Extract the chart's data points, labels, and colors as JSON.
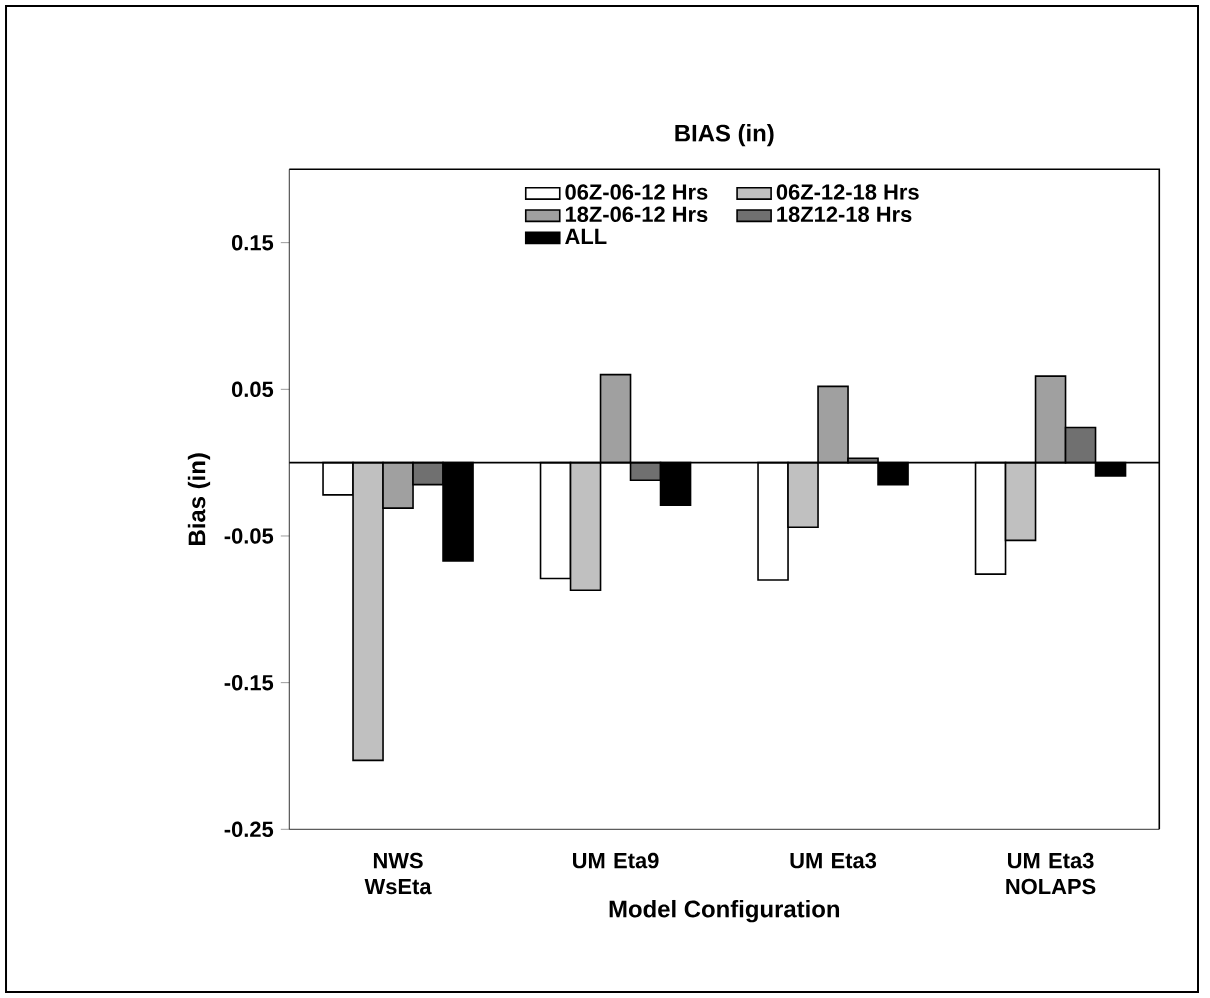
{
  "chart_data": {
    "type": "bar",
    "title": "BIAS (in)",
    "xlabel": "Model Configuration",
    "ylabel": "Bias (in)",
    "categories": [
      "NWS WsEta",
      "UM Eta9",
      "UM Eta3",
      "UM Eta3 NOLAPS"
    ],
    "series": [
      {
        "name": "06Z-06-12 Hrs",
        "color": "#ffffff",
        "values": [
          -0.022,
          -0.079,
          -0.08,
          -0.076
        ]
      },
      {
        "name": "06Z-12-18 Hrs",
        "color": "#c0c0c0",
        "values": [
          -0.203,
          -0.087,
          -0.044,
          -0.053
        ]
      },
      {
        "name": "18Z-06-12 Hrs",
        "color": "#a0a0a0",
        "values": [
          -0.031,
          0.06,
          0.052,
          0.059
        ]
      },
      {
        "name": "18Z12-18 Hrs",
        "color": "#707070",
        "values": [
          -0.015,
          -0.012,
          0.003,
          0.024
        ]
      },
      {
        "name": "ALL",
        "color": "#000000",
        "values": [
          -0.067,
          -0.029,
          -0.015,
          -0.009
        ]
      }
    ],
    "ylim": [
      -0.25,
      0.2
    ],
    "yticks": [
      0.15,
      0.05,
      -0.05,
      -0.15,
      -0.25
    ],
    "grid": false,
    "legend": "top"
  }
}
